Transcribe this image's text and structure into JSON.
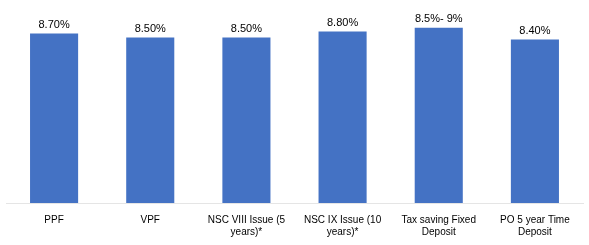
{
  "chart_data": {
    "type": "bar",
    "categories": [
      "PPF",
      "VPF",
      "NSC VIII Issue (5\nyears)*",
      "NSC IX Issue (10\nyears)*",
      "Tax saving Fixed\nDeposit",
      "PO 5 year Time\nDeposit"
    ],
    "values": [
      8.7,
      8.5,
      8.5,
      8.8,
      9.0,
      8.4
    ],
    "value_labels": [
      "8.70%",
      "8.50%",
      "8.50%",
      "8.80%",
      "8.5%- 9%",
      "8.40%"
    ],
    "data_labels": true,
    "color": "#4472C4",
    "ylim": [
      0,
      9.6
    ],
    "tick_labels": "x",
    "grid": false
  }
}
